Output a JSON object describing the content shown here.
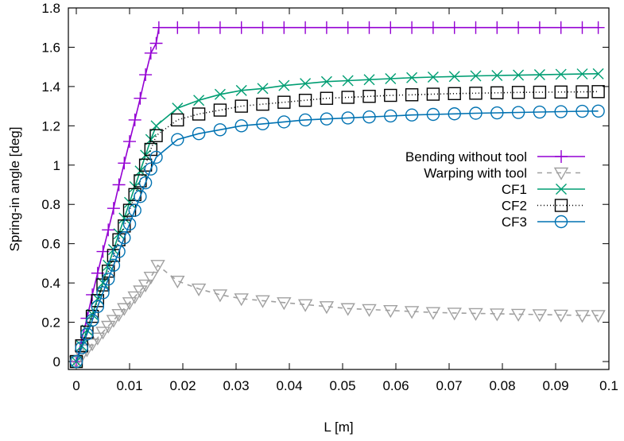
{
  "chart_data": {
    "type": "line",
    "xlabel": "L [m]",
    "ylabel": "Spring-in angle [deg]",
    "xlim": [
      0,
      0.1
    ],
    "ylim": [
      0,
      1.8
    ],
    "x_ticks": [
      "0",
      "0.01",
      "0.02",
      "0.03",
      "0.04",
      "0.05",
      "0.06",
      "0.07",
      "0.08",
      "0.09",
      "0.1"
    ],
    "y_ticks": [
      "0",
      "0.2",
      "0.4",
      "0.6",
      "0.8",
      "1",
      "1.2",
      "1.4",
      "1.6",
      "1.8"
    ],
    "grid": false,
    "legend_position": "right-center",
    "series": [
      {
        "name": "Bending without tool",
        "color": "#9400d3",
        "marker": "plus",
        "line": "solid",
        "x": [
          0,
          0.001,
          0.002,
          0.003,
          0.004,
          0.005,
          0.006,
          0.007,
          0.008,
          0.009,
          0.01,
          0.011,
          0.012,
          0.013,
          0.014,
          0.015,
          0.0155,
          0.019,
          0.023,
          0.027,
          0.031,
          0.035,
          0.039,
          0.043,
          0.047,
          0.051,
          0.055,
          0.059,
          0.063,
          0.067,
          0.071,
          0.075,
          0.079,
          0.083,
          0.087,
          0.091,
          0.095,
          0.098
        ],
        "y": [
          0,
          0.11,
          0.22,
          0.34,
          0.45,
          0.56,
          0.67,
          0.78,
          0.9,
          1.01,
          1.12,
          1.23,
          1.34,
          1.46,
          1.57,
          1.62,
          1.7,
          1.7,
          1.7,
          1.7,
          1.7,
          1.7,
          1.7,
          1.7,
          1.7,
          1.7,
          1.7,
          1.7,
          1.7,
          1.7,
          1.7,
          1.7,
          1.7,
          1.7,
          1.7,
          1.7,
          1.7,
          1.7
        ]
      },
      {
        "name": "Warping with tool",
        "color": "#a0a0a0",
        "marker": "triangle-down",
        "line": "dashed",
        "x": [
          0,
          0.001,
          0.002,
          0.003,
          0.004,
          0.005,
          0.006,
          0.007,
          0.008,
          0.009,
          0.01,
          0.011,
          0.012,
          0.013,
          0.014,
          0.0153,
          0.019,
          0.023,
          0.027,
          0.031,
          0.035,
          0.039,
          0.043,
          0.047,
          0.051,
          0.055,
          0.059,
          0.063,
          0.067,
          0.071,
          0.075,
          0.079,
          0.083,
          0.087,
          0.091,
          0.095,
          0.098
        ],
        "y": [
          0,
          0.03,
          0.06,
          0.09,
          0.12,
          0.15,
          0.18,
          0.21,
          0.24,
          0.27,
          0.3,
          0.33,
          0.36,
          0.39,
          0.43,
          0.49,
          0.41,
          0.37,
          0.34,
          0.32,
          0.31,
          0.3,
          0.29,
          0.28,
          0.27,
          0.265,
          0.26,
          0.255,
          0.25,
          0.247,
          0.245,
          0.243,
          0.241,
          0.239,
          0.237,
          0.235,
          0.235
        ]
      },
      {
        "name": "CF1",
        "color": "#009e73",
        "marker": "x",
        "line": "solid",
        "x": [
          0,
          0.001,
          0.002,
          0.003,
          0.004,
          0.005,
          0.006,
          0.007,
          0.008,
          0.009,
          0.01,
          0.011,
          0.012,
          0.013,
          0.014,
          0.015,
          0.019,
          0.023,
          0.027,
          0.031,
          0.035,
          0.039,
          0.043,
          0.047,
          0.051,
          0.055,
          0.059,
          0.063,
          0.067,
          0.071,
          0.075,
          0.079,
          0.083,
          0.087,
          0.091,
          0.095,
          0.098
        ],
        "y": [
          0,
          0.08,
          0.16,
          0.24,
          0.32,
          0.4,
          0.49,
          0.57,
          0.65,
          0.73,
          0.81,
          0.89,
          0.97,
          1.05,
          1.13,
          1.2,
          1.29,
          1.33,
          1.36,
          1.38,
          1.39,
          1.405,
          1.415,
          1.425,
          1.43,
          1.435,
          1.44,
          1.445,
          1.448,
          1.451,
          1.454,
          1.456,
          1.458,
          1.46,
          1.462,
          1.464,
          1.465
        ]
      },
      {
        "name": "CF2",
        "color": "#000000",
        "marker": "square",
        "line": "dash-dot",
        "x": [
          0,
          0.001,
          0.002,
          0.003,
          0.004,
          0.005,
          0.006,
          0.007,
          0.008,
          0.009,
          0.01,
          0.011,
          0.012,
          0.013,
          0.014,
          0.015,
          0.019,
          0.023,
          0.027,
          0.031,
          0.035,
          0.039,
          0.043,
          0.047,
          0.051,
          0.055,
          0.059,
          0.063,
          0.067,
          0.071,
          0.075,
          0.079,
          0.083,
          0.087,
          0.091,
          0.095,
          0.098
        ],
        "y": [
          0,
          0.08,
          0.15,
          0.23,
          0.31,
          0.39,
          0.46,
          0.54,
          0.62,
          0.69,
          0.77,
          0.85,
          0.92,
          1.0,
          1.08,
          1.15,
          1.23,
          1.26,
          1.28,
          1.3,
          1.31,
          1.32,
          1.33,
          1.34,
          1.345,
          1.35,
          1.355,
          1.358,
          1.361,
          1.364,
          1.366,
          1.368,
          1.37,
          1.371,
          1.372,
          1.373,
          1.374
        ]
      },
      {
        "name": "CF3",
        "color": "#0072b2",
        "marker": "circle",
        "line": "solid",
        "x": [
          0,
          0.001,
          0.002,
          0.003,
          0.004,
          0.005,
          0.006,
          0.007,
          0.008,
          0.009,
          0.01,
          0.011,
          0.012,
          0.013,
          0.014,
          0.015,
          0.019,
          0.023,
          0.027,
          0.031,
          0.035,
          0.039,
          0.043,
          0.047,
          0.051,
          0.055,
          0.059,
          0.063,
          0.067,
          0.071,
          0.075,
          0.079,
          0.083,
          0.087,
          0.091,
          0.095,
          0.098
        ],
        "y": [
          0,
          0.07,
          0.14,
          0.21,
          0.28,
          0.35,
          0.42,
          0.49,
          0.56,
          0.63,
          0.7,
          0.77,
          0.84,
          0.91,
          0.98,
          1.04,
          1.13,
          1.16,
          1.18,
          1.2,
          1.21,
          1.22,
          1.23,
          1.235,
          1.24,
          1.245,
          1.25,
          1.255,
          1.258,
          1.261,
          1.264,
          1.266,
          1.268,
          1.27,
          1.272,
          1.274,
          1.275
        ]
      }
    ]
  }
}
